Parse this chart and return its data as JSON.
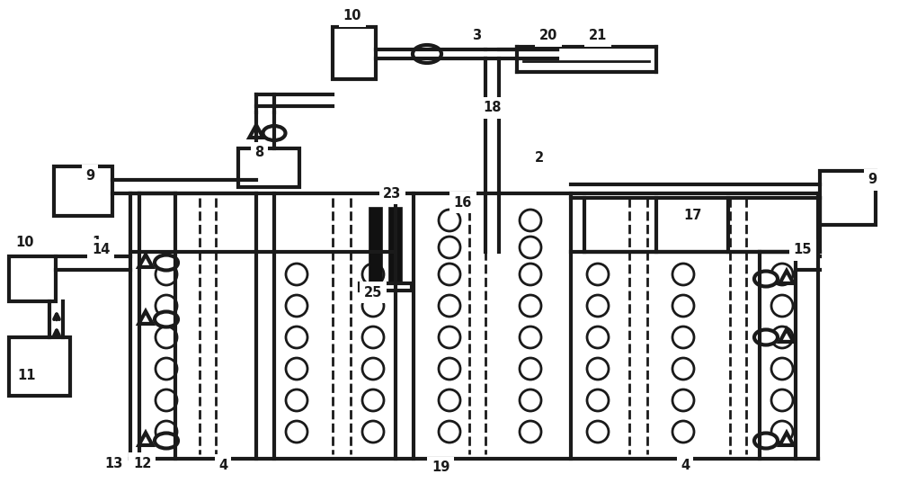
{
  "bg": "#ffffff",
  "lc": "#1a1a1a",
  "lw": 2.0,
  "lw2": 3.0,
  "figw": 10.0,
  "figh": 5.57,
  "dpi": 100
}
